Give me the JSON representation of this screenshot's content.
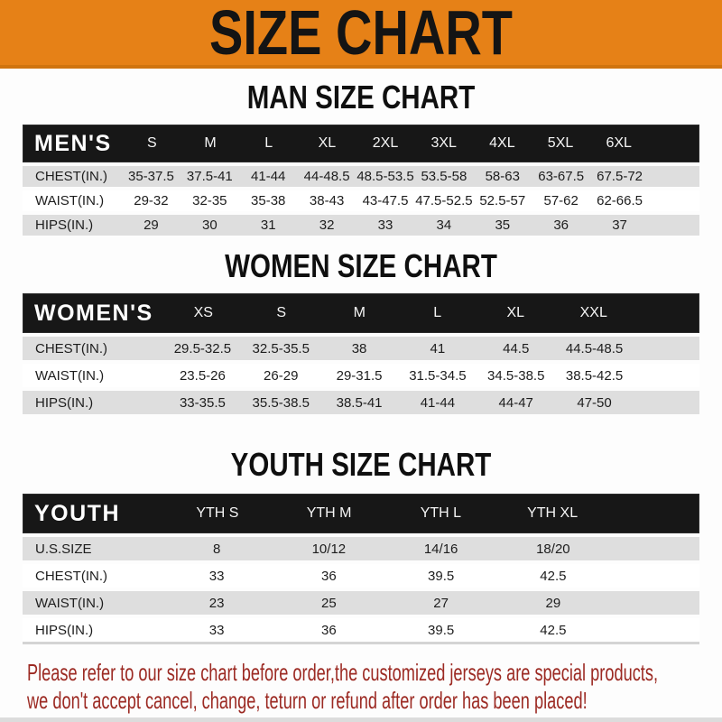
{
  "banner": {
    "title": "SIZE CHART"
  },
  "men": {
    "title": "MAN SIZE CHART",
    "table": {
      "header": [
        "MEN'S",
        "S",
        "M",
        "L",
        "XL",
        "2XL",
        "3XL",
        "4XL",
        "5XL",
        "6XL"
      ],
      "rows": [
        [
          "CHEST(IN.)",
          "35-37.5",
          "37.5-41",
          "41-44",
          "44-48.5",
          "48.5-53.5",
          "53.5-58",
          "58-63",
          "63-67.5",
          "67.5-72"
        ],
        [
          "WAIST(IN.)",
          "29-32",
          "32-35",
          "35-38",
          "38-43",
          "43-47.5",
          "47.5-52.5",
          "52.5-57",
          "57-62",
          "62-66.5"
        ],
        [
          "HIPS(IN.)",
          "29",
          "30",
          "31",
          "32",
          "33",
          "34",
          "35",
          "36",
          "37"
        ]
      ]
    }
  },
  "women": {
    "title": "WOMEN SIZE CHART",
    "table": {
      "header": [
        "WOMEN'S",
        "XS",
        "S",
        "M",
        "L",
        "XL",
        "XXL"
      ],
      "rows": [
        [
          "CHEST(IN.)",
          "29.5-32.5",
          "32.5-35.5",
          "38",
          "41",
          "44.5",
          "44.5-48.5"
        ],
        [
          "WAIST(IN.)",
          "23.5-26",
          "26-29",
          "29-31.5",
          "31.5-34.5",
          "34.5-38.5",
          "38.5-42.5"
        ],
        [
          "HIPS(IN.)",
          "33-35.5",
          "35.5-38.5",
          "38.5-41",
          "41-44",
          "44-47",
          "47-50"
        ]
      ]
    }
  },
  "youth": {
    "title": "YOUTH SIZE CHART",
    "table": {
      "header": [
        "YOUTH",
        "YTH S",
        "YTH M",
        "YTH L",
        "YTH XL"
      ],
      "rows": [
        [
          "U.S.SIZE",
          "8",
          "10/12",
          "14/16",
          "18/20"
        ],
        [
          "CHEST(IN.)",
          "33",
          "36",
          "39.5",
          "42.5"
        ],
        [
          "WAIST(IN.)",
          "23",
          "25",
          "27",
          "29"
        ],
        [
          "HIPS(IN.)",
          "33",
          "36",
          "39.5",
          "42.5"
        ]
      ]
    }
  },
  "footer": {
    "line1": "Please refer to our size chart before order,the customized jerseys are special products,",
    "line2": "we don't accept cancel, change, teturn or refund after order has been placed!"
  },
  "colors": {
    "banner_bg": "#e68117",
    "banner_edge": "#d0740f",
    "header_bar_bg": "#171717",
    "row_stripe": "#dedede",
    "note_red": "#9c2a23"
  }
}
